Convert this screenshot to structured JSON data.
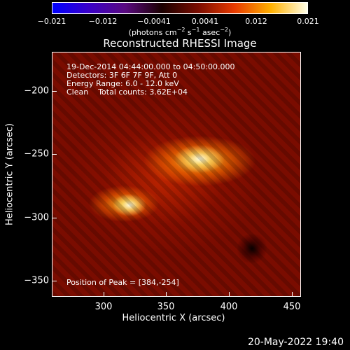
{
  "colorbar": {
    "tick_labels": [
      "−0.021",
      "−0.012",
      "−0.0041",
      "0.0041",
      "0.012",
      "0.021"
    ],
    "units_main": "(photons cm",
    "units_exp1": "−2",
    "units_mid1": " s",
    "units_exp2": "−1",
    "units_mid2": " asec",
    "units_exp3": "−2",
    "units_close": ")"
  },
  "title": "Reconstructed RHESSI Image",
  "info": {
    "time_range": "19-Dec-2014 04:44:00.000 to 04:50:00.000",
    "detectors": "Detectors: 3F 6F 7F 9F, Att 0",
    "energy": "Energy Range: 6.0 - 12.0 keV",
    "clean": "Clean    Total counts: 3.62E+04"
  },
  "peak": "Position of Peak = [384,-254]",
  "y_axis": {
    "label": "Heliocentric Y (arcsec)",
    "ticks": [
      "−200",
      "−250",
      "−300",
      "−350"
    ]
  },
  "x_axis": {
    "label": "Heliocentric X (arcsec)",
    "ticks": [
      "300",
      "350",
      "400",
      "450"
    ]
  },
  "timestamp": "20-May-2022 19:40",
  "colors": {
    "colorbar_stops": [
      "#0000ff",
      "#3a00c8",
      "#5a0a80",
      "#1a0000",
      "#7a0c00",
      "#e83a00",
      "#ffb000",
      "#ffffe8"
    ],
    "background": "#000000"
  }
}
